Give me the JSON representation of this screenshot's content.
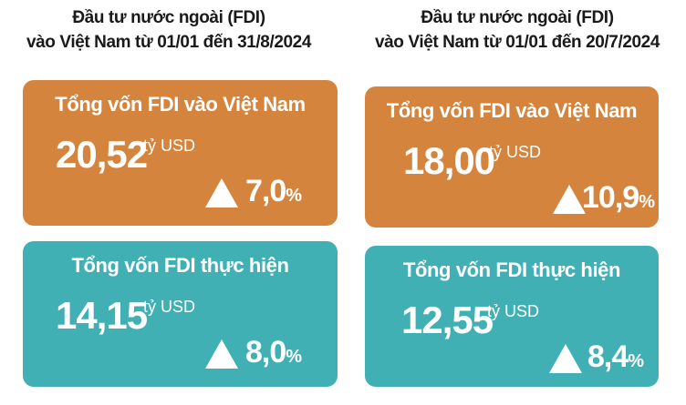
{
  "panels": [
    {
      "title_lines": [
        "Đầu tư nước ngoài (FDI)",
        "vào Việt Nam từ 01/01 đến 31/8/2024"
      ],
      "cards": [
        {
          "label": "Tổng vốn FDI vào Việt Nam",
          "amount": "20,52",
          "unit": "tỷ USD",
          "change": "7,0",
          "change_unit": "%"
        },
        {
          "label": "Tổng vốn FDI thực hiện",
          "amount": "14,15",
          "unit": "tỷ USD",
          "change": "8,0",
          "change_unit": "%"
        }
      ]
    },
    {
      "title_lines": [
        "Đầu tư nước ngoài (FDI)",
        "vào Việt Nam từ 01/01 đến 20/7/2024"
      ],
      "cards": [
        {
          "label": "Tổng vốn FDI vào Việt Nam",
          "amount": "18,00",
          "unit": "tỷ USD",
          "change": "10,9",
          "change_unit": "%"
        },
        {
          "label": "Tổng vốn FDI thực hiện",
          "amount": "12,55",
          "unit": "tỷ USD",
          "change": "8,4",
          "change_unit": "%"
        }
      ]
    }
  ]
}
